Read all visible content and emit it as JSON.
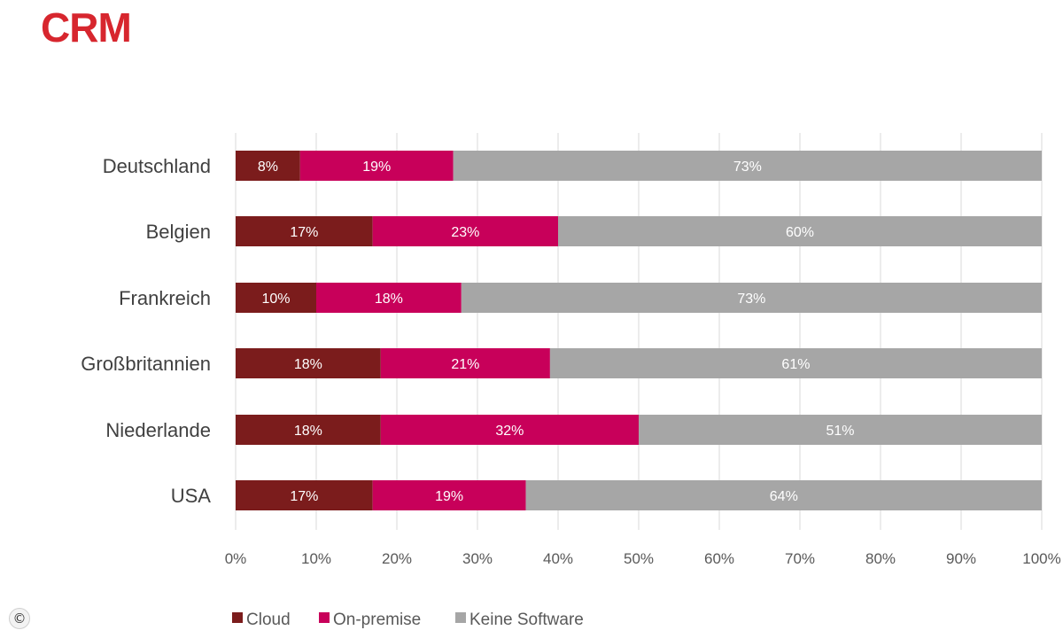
{
  "title": "CRM",
  "copyright_symbol": "©",
  "chart_data": {
    "type": "bar",
    "orientation": "horizontal",
    "stacked": true,
    "categories": [
      "Deutschland",
      "Belgien",
      "Frankreich",
      "Großbritannien",
      "Niederlande",
      "USA"
    ],
    "series": [
      {
        "name": "Cloud",
        "values": [
          8,
          17,
          10,
          18,
          18,
          17
        ],
        "color": "#7b1c1c",
        "labels": [
          "8%",
          "17%",
          "10%",
          "18%",
          "18%",
          "17%"
        ]
      },
      {
        "name": "On-premise",
        "values": [
          19,
          23,
          18,
          21,
          32,
          19
        ],
        "color": "#c8005a",
        "labels": [
          "19%",
          "23%",
          "18%",
          "21%",
          "32%",
          "19%"
        ]
      },
      {
        "name": "Keine Software",
        "values": [
          73,
          60,
          73,
          61,
          51,
          64
        ],
        "color": "#a6a6a6",
        "labels": [
          "73%",
          "60%",
          "73%",
          "61%",
          "51%",
          "64%"
        ]
      }
    ],
    "xlim": [
      0,
      100
    ],
    "x_ticks": [
      "0%",
      "10%",
      "20%",
      "30%",
      "40%",
      "50%",
      "60%",
      "70%",
      "80%",
      "90%",
      "100%"
    ],
    "grid": "vertical",
    "legend": "bottom"
  }
}
